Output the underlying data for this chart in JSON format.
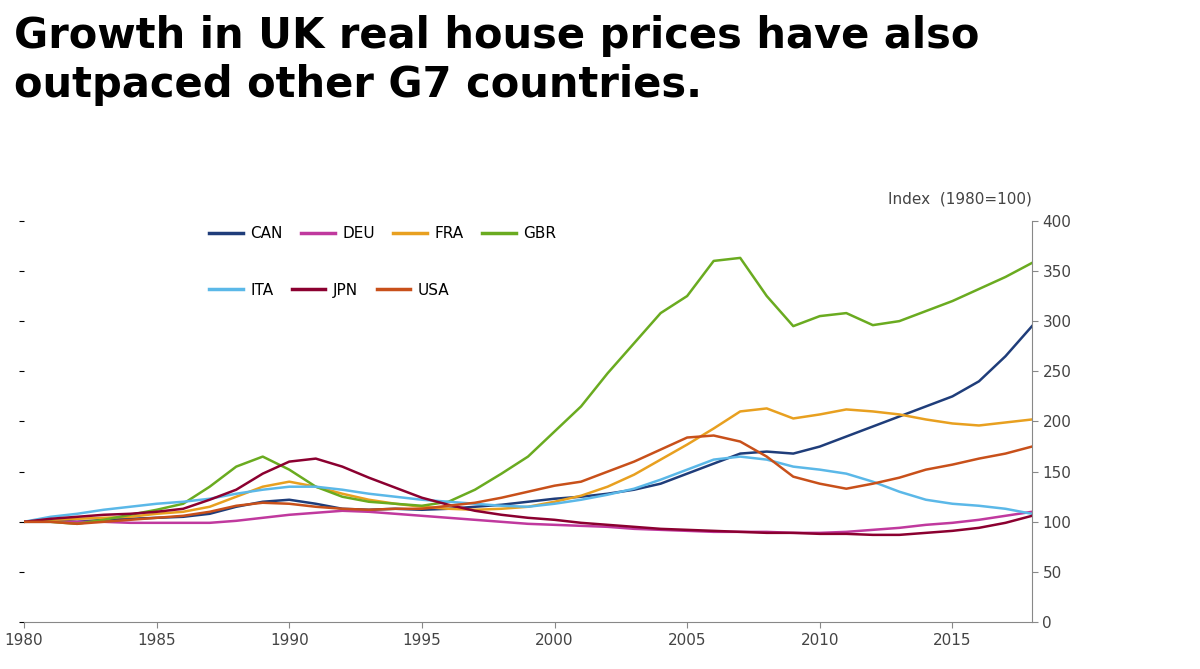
{
  "title_line1": "Growth in UK real house prices have also",
  "title_line2": "outpaced other G7 countries.",
  "ylabel": "Index  (1980=100)",
  "xlim": [
    1980,
    2018
  ],
  "ylim": [
    0,
    400
  ],
  "yticks": [
    0,
    50,
    100,
    150,
    200,
    250,
    300,
    350,
    400
  ],
  "xticks": [
    1980,
    1985,
    1990,
    1995,
    2000,
    2005,
    2010,
    2015
  ],
  "background_color": "#ffffff",
  "title_color": "#000000",
  "title_fontsize": 30,
  "separator_color": "#1a3a6e",
  "legend_row1": [
    "CAN",
    "DEU",
    "FRA",
    "GBR"
  ],
  "legend_row2": [
    "ITA",
    "JPN",
    "USA"
  ],
  "series": {
    "CAN": {
      "color": "#1f3d7a",
      "years": [
        1980,
        1981,
        1982,
        1983,
        1984,
        1985,
        1986,
        1987,
        1988,
        1989,
        1990,
        1991,
        1992,
        1993,
        1994,
        1995,
        1996,
        1997,
        1998,
        1999,
        2000,
        2001,
        2002,
        2003,
        2004,
        2005,
        2006,
        2007,
        2008,
        2009,
        2010,
        2011,
        2012,
        2013,
        2014,
        2015,
        2016,
        2017,
        2018
      ],
      "values": [
        100,
        102,
        100,
        102,
        103,
        104,
        105,
        108,
        115,
        120,
        122,
        118,
        113,
        112,
        113,
        112,
        113,
        115,
        117,
        120,
        123,
        125,
        128,
        132,
        138,
        148,
        158,
        168,
        170,
        168,
        175,
        185,
        195,
        205,
        215,
        225,
        240,
        265,
        295
      ]
    },
    "DEU": {
      "color": "#c0399e",
      "years": [
        1980,
        1981,
        1982,
        1983,
        1984,
        1985,
        1986,
        1987,
        1988,
        1989,
        1990,
        1991,
        1992,
        1993,
        1994,
        1995,
        1996,
        1997,
        1998,
        1999,
        2000,
        2001,
        2002,
        2003,
        2004,
        2005,
        2006,
        2007,
        2008,
        2009,
        2010,
        2011,
        2012,
        2013,
        2014,
        2015,
        2016,
        2017,
        2018
      ],
      "values": [
        100,
        100,
        100,
        100,
        99,
        99,
        99,
        99,
        101,
        104,
        107,
        109,
        111,
        110,
        108,
        106,
        104,
        102,
        100,
        98,
        97,
        96,
        95,
        93,
        92,
        91,
        90,
        90,
        90,
        89,
        89,
        90,
        92,
        94,
        97,
        99,
        102,
        106,
        110
      ]
    },
    "FRA": {
      "color": "#e8a020",
      "years": [
        1980,
        1981,
        1982,
        1983,
        1984,
        1985,
        1986,
        1987,
        1988,
        1989,
        1990,
        1991,
        1992,
        1993,
        1994,
        1995,
        1996,
        1997,
        1998,
        1999,
        2000,
        2001,
        2002,
        2003,
        2004,
        2005,
        2006,
        2007,
        2008,
        2009,
        2010,
        2011,
        2012,
        2013,
        2014,
        2015,
        2016,
        2017,
        2018
      ],
      "values": [
        100,
        102,
        103,
        104,
        105,
        108,
        110,
        115,
        125,
        135,
        140,
        135,
        128,
        122,
        118,
        115,
        113,
        112,
        113,
        115,
        120,
        126,
        135,
        147,
        162,
        177,
        193,
        210,
        213,
        203,
        207,
        212,
        210,
        207,
        202,
        198,
        196,
        199,
        202
      ]
    },
    "GBR": {
      "color": "#6aab20",
      "years": [
        1980,
        1981,
        1982,
        1983,
        1984,
        1985,
        1986,
        1987,
        1988,
        1989,
        1990,
        1991,
        1992,
        1993,
        1994,
        1995,
        1996,
        1997,
        1998,
        1999,
        2000,
        2001,
        2002,
        2003,
        2004,
        2005,
        2006,
        2007,
        2008,
        2009,
        2010,
        2011,
        2012,
        2013,
        2014,
        2015,
        2016,
        2017,
        2018
      ],
      "values": [
        100,
        100,
        98,
        102,
        107,
        112,
        118,
        135,
        155,
        165,
        152,
        135,
        125,
        120,
        118,
        116,
        120,
        132,
        148,
        165,
        190,
        215,
        248,
        278,
        308,
        325,
        360,
        363,
        325,
        295,
        305,
        308,
        296,
        300,
        310,
        320,
        332,
        344,
        358
      ]
    },
    "ITA": {
      "color": "#5bb8e8",
      "years": [
        1980,
        1981,
        1982,
        1983,
        1984,
        1985,
        1986,
        1987,
        1988,
        1989,
        1990,
        1991,
        1992,
        1993,
        1994,
        1995,
        1996,
        1997,
        1998,
        1999,
        2000,
        2001,
        2002,
        2003,
        2004,
        2005,
        2006,
        2007,
        2008,
        2009,
        2010,
        2011,
        2012,
        2013,
        2014,
        2015,
        2016,
        2017,
        2018
      ],
      "values": [
        100,
        105,
        108,
        112,
        115,
        118,
        120,
        123,
        128,
        132,
        135,
        135,
        132,
        128,
        125,
        122,
        120,
        118,
        116,
        115,
        118,
        122,
        127,
        133,
        142,
        152,
        162,
        165,
        162,
        155,
        152,
        148,
        140,
        130,
        122,
        118,
        116,
        113,
        108
      ]
    },
    "JPN": {
      "color": "#8b0030",
      "years": [
        1980,
        1981,
        1982,
        1983,
        1984,
        1985,
        1986,
        1987,
        1988,
        1989,
        1990,
        1991,
        1992,
        1993,
        1994,
        1995,
        1996,
        1997,
        1998,
        1999,
        2000,
        2001,
        2002,
        2003,
        2004,
        2005,
        2006,
        2007,
        2008,
        2009,
        2010,
        2011,
        2012,
        2013,
        2014,
        2015,
        2016,
        2017,
        2018
      ],
      "values": [
        100,
        103,
        105,
        107,
        108,
        110,
        113,
        122,
        132,
        148,
        160,
        163,
        155,
        144,
        134,
        124,
        117,
        111,
        107,
        104,
        102,
        99,
        97,
        95,
        93,
        92,
        91,
        90,
        89,
        89,
        88,
        88,
        87,
        87,
        89,
        91,
        94,
        99,
        106
      ]
    },
    "USA": {
      "color": "#c8501a",
      "years": [
        1980,
        1981,
        1982,
        1983,
        1984,
        1985,
        1986,
        1987,
        1988,
        1989,
        1990,
        1991,
        1992,
        1993,
        1994,
        1995,
        1996,
        1997,
        1998,
        1999,
        2000,
        2001,
        2002,
        2003,
        2004,
        2005,
        2006,
        2007,
        2008,
        2009,
        2010,
        2011,
        2012,
        2013,
        2014,
        2015,
        2016,
        2017,
        2018
      ],
      "values": [
        100,
        100,
        98,
        100,
        102,
        104,
        106,
        110,
        116,
        119,
        118,
        115,
        113,
        112,
        113,
        113,
        116,
        119,
        124,
        130,
        136,
        140,
        150,
        160,
        172,
        184,
        186,
        180,
        165,
        145,
        138,
        133,
        138,
        144,
        152,
        157,
        163,
        168,
        175
      ]
    }
  }
}
